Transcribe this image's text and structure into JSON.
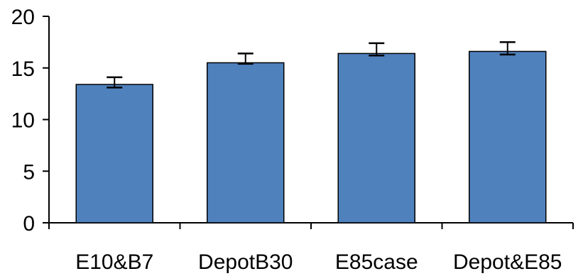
{
  "chart_data": {
    "type": "bar",
    "categories": [
      "E10&B7",
      "DepotB30",
      "E85case",
      "Depot&E85"
    ],
    "values": [
      13.4,
      15.5,
      16.4,
      16.6
    ],
    "error_low": [
      13.1,
      15.4,
      16.2,
      16.3
    ],
    "error_high": [
      14.1,
      16.4,
      17.4,
      17.5
    ],
    "ylim": [
      0,
      20
    ],
    "yticks": [
      "0",
      "5",
      "10",
      "15",
      "20"
    ],
    "title": "",
    "xlabel": "",
    "ylabel": "",
    "grid": false,
    "legend": "none",
    "colors": {
      "bar_fill": "#4f81bd",
      "bar_stroke": "#000000",
      "axis": "#000000",
      "error_bar": "#000000"
    }
  }
}
